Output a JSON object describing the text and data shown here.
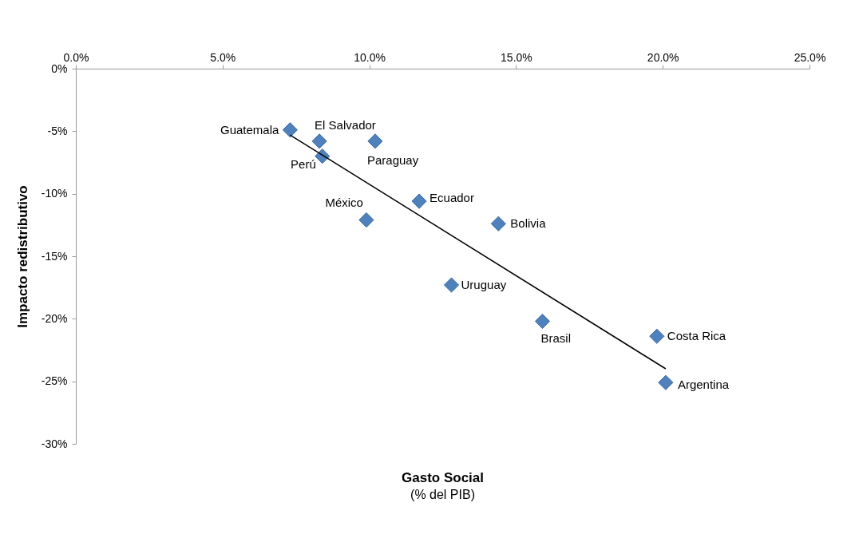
{
  "chart_data": {
    "type": "scatter",
    "xlabel": "Gasto Social\n(% del PIB)",
    "ylabel": "Impacto redistributivo",
    "xlim": [
      0,
      25
    ],
    "xticks": [
      {
        "value": 0,
        "label": "0.0%"
      },
      {
        "value": 5,
        "label": "5.0%"
      },
      {
        "value": 10,
        "label": "10.0%"
      },
      {
        "value": 15,
        "label": "15.0%"
      },
      {
        "value": 20,
        "label": "20.0%"
      },
      {
        "value": 25,
        "label": "25.0%"
      }
    ],
    "ylim": [
      -30,
      0
    ],
    "yticks": [
      {
        "value": 0,
        "label": "0%"
      },
      {
        "value": -5,
        "label": "-5%"
      },
      {
        "value": -10,
        "label": "-10%"
      },
      {
        "value": -15,
        "label": "-15%"
      },
      {
        "value": -20,
        "label": "-20%"
      },
      {
        "value": -25,
        "label": "-25%"
      },
      {
        "value": -30,
        "label": "-30%"
      }
    ],
    "grid": false,
    "marker": "diamond",
    "series": [
      {
        "color": "#4f81bd",
        "x": [
          7.3,
          8.3,
          10.2,
          8.4,
          11.7,
          9.9,
          14.4,
          12.8,
          15.9,
          19.8,
          20.1
        ],
        "values": [
          -4.9,
          -5.8,
          -5.8,
          -7.0,
          -10.6,
          -12.1,
          -12.4,
          -17.3,
          -20.2,
          -21.4,
          -25.1
        ]
      },
      {
        "type": "line",
        "color": "#000000",
        "marker": "none",
        "x": [
          7.3,
          20.1
        ],
        "values": [
          -5.3,
          -24.0
        ]
      }
    ],
    "annotations": [
      {
        "text": "Guatemala",
        "x": 7.3,
        "y": -4.9
      },
      {
        "text": "El Salvador",
        "x": 8.3,
        "y": -5.8
      },
      {
        "text": "Paraguay",
        "x": 10.2,
        "y": -5.8
      },
      {
        "text": "Perú",
        "x": 8.4,
        "y": -7.0
      },
      {
        "text": "Ecuador",
        "x": 11.7,
        "y": -10.6
      },
      {
        "text": "México",
        "x": 9.9,
        "y": -12.1
      },
      {
        "text": "Bolivia",
        "x": 14.4,
        "y": -12.4
      },
      {
        "text": "Uruguay",
        "x": 12.8,
        "y": -17.3
      },
      {
        "text": "Brasil",
        "x": 15.9,
        "y": -20.2
      },
      {
        "text": "Costa Rica",
        "x": 19.8,
        "y": -21.4
      },
      {
        "text": "Argentina",
        "x": 20.1,
        "y": -25.1
      }
    ]
  }
}
